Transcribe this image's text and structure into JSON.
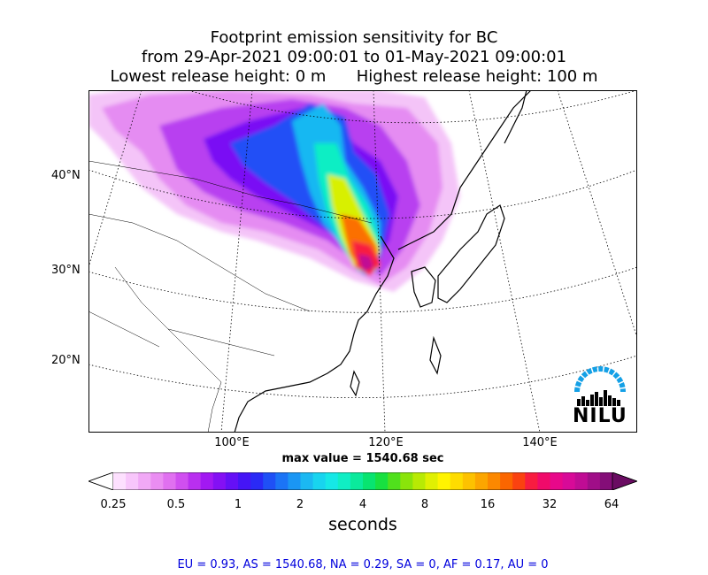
{
  "title": {
    "line1": "Footprint emission sensitivity for BC",
    "line2": "from 29-Apr-2021 09:00:01 to 01-May-2021 09:00:01",
    "line3": "Lowest release height: 0 m      Highest release height: 100 m"
  },
  "map": {
    "lat_labels": [
      "40°N",
      "30°N",
      "20°N"
    ],
    "lon_labels": [
      "100°E",
      "120°E",
      "140°E"
    ],
    "logo_text": "NILU",
    "land_color": "#ffffff",
    "coast_color": "#000000"
  },
  "max_value_label": "max value = 1540.68 sec",
  "colorbar": {
    "ticks": [
      "0.25",
      "0.5",
      "1",
      "2",
      "4",
      "8",
      "16",
      "32",
      "64"
    ],
    "label": "seconds",
    "colors": [
      "#ffffff",
      "#fde0fe",
      "#f8c6fb",
      "#f1a9f6",
      "#ea8df2",
      "#e070f0",
      "#d04ff0",
      "#b92ff0",
      "#a218f2",
      "#8410f4",
      "#6510f6",
      "#4515f6",
      "#2a2af6",
      "#1f50f6",
      "#1b74f6",
      "#1a96f4",
      "#1bb8f2",
      "#18d4ef",
      "#16e8e6",
      "#10eec4",
      "#0aea9c",
      "#08e470",
      "#18e040",
      "#50e01c",
      "#8ae40a",
      "#b8ea04",
      "#e0f002",
      "#fff400",
      "#fedc00",
      "#fdc200",
      "#fca600",
      "#fc8800",
      "#fb6600",
      "#fa4210",
      "#f81c40",
      "#f00a6a",
      "#e8088a",
      "#d80a98",
      "#c00c94",
      "#a00e88",
      "#840e78",
      "#6a0c62"
    ]
  },
  "stats": "EU = 0.93,  AS = 1540.68,  NA = 0.29,  SA = 0,  AF = 0.17,  AU = 0"
}
